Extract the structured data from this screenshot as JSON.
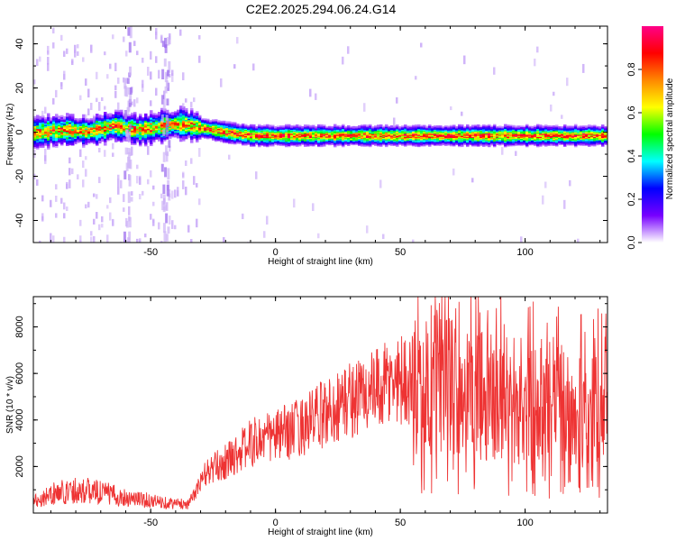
{
  "title": "C2E2.2025.294.06.24.G14",
  "chart_data": [
    {
      "type": "heatmap",
      "xlabel": "Height of straight line (km)",
      "ylabel": "Frequency (Hz)",
      "xlim": [
        -97,
        133
      ],
      "ylim": [
        -50,
        48
      ],
      "x_ticks": [
        -50,
        0,
        50,
        100
      ],
      "y_ticks": [
        -40,
        -20,
        0,
        20,
        40
      ],
      "x_tick_labels": [
        "-50",
        "0",
        "50",
        "100"
      ],
      "y_tick_labels": [
        "-40",
        "-20",
        "0",
        "20",
        "40"
      ],
      "center_frequency_track": {
        "x": [
          -97,
          -85,
          -75,
          -65,
          -55,
          -45,
          -38,
          -30,
          -20,
          -10,
          0,
          20,
          40,
          60,
          80,
          100,
          120,
          133
        ],
        "y": [
          0,
          1,
          0.5,
          3,
          1,
          3,
          4,
          2,
          0,
          -1.5,
          -1.5,
          -1.5,
          -1.5,
          -1.5,
          -1.5,
          -1.5,
          -1.5,
          -1.5
        ]
      },
      "colorbar": {
        "label": "Normalized spectral amplitude",
        "range": [
          0,
          1
        ],
        "ticks": [
          0.0,
          0.2,
          0.4,
          0.6,
          0.8
        ],
        "tick_labels": [
          "0.0",
          "0.2",
          "0.4",
          "0.6",
          "0.8"
        ],
        "colormap": "rainbow",
        "colors": [
          "#ffffff",
          "#7700ff",
          "#0000ff",
          "#00ffff",
          "#00ff00",
          "#ffff00",
          "#ff8800",
          "#ff0000",
          "#ff0088"
        ]
      }
    },
    {
      "type": "line",
      "xlabel": "Height of straight line (km)",
      "ylabel": "SNR (10 * v/v)",
      "xlim": [
        -97,
        133
      ],
      "ylim": [
        0,
        9300
      ],
      "x_ticks": [
        -50,
        0,
        50,
        100
      ],
      "y_ticks": [
        2000,
        4000,
        6000,
        8000
      ],
      "x_tick_labels": [
        "-50",
        "0",
        "50",
        "100"
      ],
      "y_tick_labels": [
        "2000",
        "4000",
        "6000",
        "8000"
      ],
      "color": "#ee3333",
      "series": [
        {
          "x": [
            -97,
            -90,
            -80,
            -70,
            -62,
            -55,
            -48,
            -40,
            -35,
            -32,
            -28,
            -25,
            -20,
            -15,
            -10,
            -5,
            0,
            5,
            10,
            15,
            20,
            25,
            30,
            35,
            40,
            45,
            50,
            55,
            60,
            65,
            70,
            75,
            80,
            85,
            90,
            95,
            100,
            105,
            110,
            115,
            120,
            125,
            130,
            133
          ],
          "y": [
            500,
            800,
            1000,
            900,
            700,
            600,
            500,
            400,
            400,
            900,
            1700,
            1900,
            2200,
            2600,
            3000,
            3200,
            3300,
            3500,
            3700,
            4000,
            4300,
            4600,
            4900,
            5100,
            5200,
            5500,
            5800,
            5700,
            5400,
            5600,
            5500,
            5300,
            5000,
            5000,
            4800,
            4700,
            4500,
            4800,
            4900,
            4600,
            4300,
            4300,
            4500,
            4800
          ]
        }
      ]
    }
  ]
}
